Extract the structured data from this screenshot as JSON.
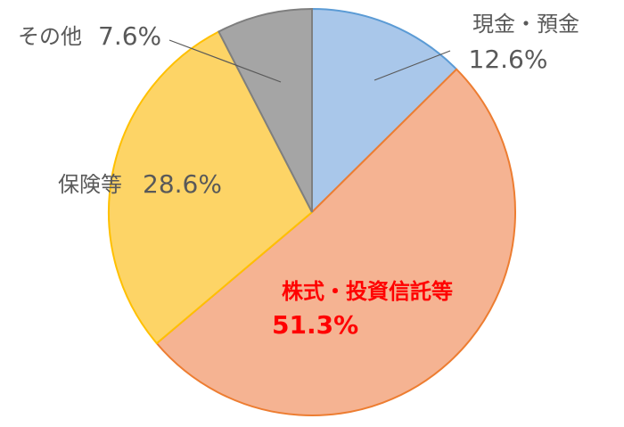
{
  "chart_data": {
    "type": "pie",
    "categories": [
      "現金・預金",
      "株式・投資信託等",
      "保険等",
      "その他"
    ],
    "values": [
      12.6,
      51.3,
      28.6,
      7.6
    ],
    "value_labels": [
      "12.6%",
      "51.3%",
      "28.6%",
      "7.6%"
    ],
    "colors": [
      "#a9c7ea",
      "#f5b392",
      "#fdd466",
      "#a5a5a5"
    ],
    "edge_colors": [
      "#5b9bd5",
      "#ed7d31",
      "#ffc000",
      "#7f7f7f"
    ],
    "label_colors": [
      "#595959",
      "#ff0000",
      "#595959",
      "#595959"
    ]
  }
}
